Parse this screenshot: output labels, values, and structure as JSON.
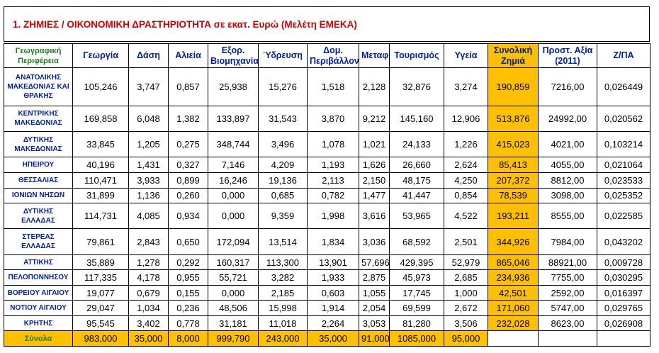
{
  "title": "1. ΖΗΜΙΕΣ / ΟΙΚΟΝΟΜΙΚΗ ΔΡΑΣΤΗΡΙΟΤΗΤΑ σε εκατ. Ευρώ (Μελέτη ΕΜΕΚΑ)",
  "headers": [
    "Γεωγραφική Περιφέρεια",
    "Γεωργία",
    "Δάση",
    "Αλιεία",
    "Εξορ. Βιομηχανία",
    "Ύδρευση",
    "Δομ. Περιβάλλον",
    "Μεταφορές",
    "Τουρισμός",
    "Υγεία",
    "Συνολική Ζημιά",
    "Προστ. Αξία (2011)",
    "Ζ/ΠΑ"
  ],
  "rows": [
    [
      "ΑΝΑΤΟΛΙΚΗΣ ΜΑΚΕΔΟΝΙΑΣ ΚΑΙ ΘΡΑΚΗΣ",
      "105,246",
      "3,747",
      "0,857",
      "25,938",
      "15,276",
      "1,518",
      "2,128",
      "32,876",
      "3,274",
      "190,859",
      "7216,00",
      "0,026449"
    ],
    [
      "ΚΕΝΤΡΙΚΗΣ ΜΑΚΕΔΟΝΙΑΣ",
      "169,858",
      "6,048",
      "1,382",
      "133,897",
      "31,543",
      "3,870",
      "9,212",
      "145,160",
      "12,906",
      "513,876",
      "24992,00",
      "0,020562"
    ],
    [
      "ΔΥΤΙΚΗΣ ΜΑΚΕΔΟΝΙΑΣ",
      "33,845",
      "1,205",
      "0,275",
      "348,744",
      "3,496",
      "1,078",
      "1,021",
      "24,133",
      "1,226",
      "415,023",
      "4021,00",
      "0,103214"
    ],
    [
      "ΗΠΕΙΡΟΥ",
      "40,196",
      "1,431",
      "0,327",
      "7,146",
      "4,209",
      "1,193",
      "1,626",
      "26,660",
      "2,624",
      "85,413",
      "4055,00",
      "0,021064"
    ],
    [
      "ΘΕΣΣΑΛΙΑΣ",
      "110,471",
      "3,933",
      "0,899",
      "16,246",
      "19,136",
      "2,113",
      "2,150",
      "48,175",
      "4,250",
      "207,372",
      "8812,00",
      "0,023533"
    ],
    [
      "ΙΟΝΙΩΝ ΝΗΣΩΝ",
      "31,899",
      "1,136",
      "0,260",
      "0,000",
      "0,685",
      "0,782",
      "1,477",
      "41,447",
      "0,854",
      "78,539",
      "3098,00",
      "0,025352"
    ],
    [
      "ΔΥΤΙΚΗΣ ΕΛΛΑΔΑΣ",
      "114,731",
      "4,085",
      "0,934",
      "0,000",
      "9,359",
      "1,998",
      "3,616",
      "53,965",
      "4,522",
      "193,211",
      "8555,00",
      "0,022585"
    ],
    [
      "ΣΤΕΡΕΑΣ ΕΛΛΑΔΑΣ",
      "79,861",
      "2,843",
      "0,650",
      "172,094",
      "13,514",
      "1,834",
      "3,036",
      "68,592",
      "2,501",
      "344,926",
      "7984,00",
      "0,043202"
    ],
    [
      "ΑΤΤΙΚΗΣ",
      "35,889",
      "1,278",
      "0,292",
      "160,317",
      "113,300",
      "13,901",
      "57,696",
      "429,395",
      "52,979",
      "865,046",
      "88921,00",
      "0,009728"
    ],
    [
      "ΠΕΛΟΠΟΝΝΗΣΟΥ",
      "117,335",
      "4,178",
      "0,955",
      "55,721",
      "3,282",
      "1,933",
      "2,875",
      "45,973",
      "2,685",
      "234,936",
      "7755,00",
      "0,030295"
    ],
    [
      "ΒΟΡΕΙΟΥ ΑΙΓΑΙΟΥ",
      "19,077",
      "0,679",
      "0,155",
      "0,000",
      "2,185",
      "0,603",
      "1,055",
      "17,745",
      "1,000",
      "42,501",
      "2592,00",
      "0,016397"
    ],
    [
      "ΝΟΤΙΟΥ ΑΙΓΑΙΟΥ",
      "29,047",
      "1,034",
      "0,236",
      "48,506",
      "15,998",
      "1,914",
      "2,054",
      "69,599",
      "2,672",
      "171,060",
      "5747,00",
      "0,029765"
    ],
    [
      "ΚΡΗΤΗΣ",
      "95,545",
      "3,402",
      "0,778",
      "31,181",
      "11,018",
      "2,264",
      "3,053",
      "81,280",
      "3,506",
      "232,028",
      "8623,00",
      "0,026908"
    ]
  ],
  "totals": [
    "Σύνολα",
    "983,000",
    "35,000",
    "8,000",
    "999,790",
    "243,000",
    "35,000",
    "91,000",
    "1085,000",
    "95,000",
    "",
    "",
    ""
  ],
  "colors": {
    "title": "#d00000",
    "header": "#00209f",
    "geo_header": "#1f7a1f",
    "highlight": "#ffc000"
  }
}
